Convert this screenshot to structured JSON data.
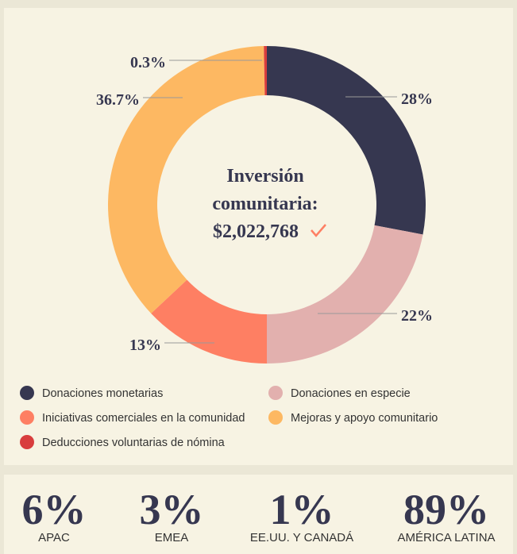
{
  "chart_data": {
    "type": "donut",
    "center_label": [
      "Inversión",
      "comunitaria:",
      "$2,022,768"
    ],
    "series": [
      {
        "name": "Donaciones monetarias",
        "color": "#363750",
        "value": 28,
        "value_label": "28%"
      },
      {
        "name": "Donaciones en especie",
        "color": "#e2b0ae",
        "value": 22,
        "value_label": "22%"
      },
      {
        "name": "Iniciativas comerciales en la comunidad",
        "color": "#fe7f63",
        "value": 13,
        "value_label": "13%"
      },
      {
        "name": "Mejoras y apoyo comunitario",
        "color": "#fdb862",
        "value": 36.7,
        "value_label": "36.7%"
      },
      {
        "name": "Deducciones voluntarias de nómina",
        "color": "#d83d3d",
        "value": 0.3,
        "value_label": "0.3%"
      }
    ]
  },
  "stats": [
    {
      "value": "6%",
      "label": "APAC"
    },
    {
      "value": "3%",
      "label": "EMEA"
    },
    {
      "value": "1%",
      "label": "EE.UU. Y CANADÁ"
    },
    {
      "value": "89%",
      "label": "AMÉRICA LATINA"
    }
  ]
}
